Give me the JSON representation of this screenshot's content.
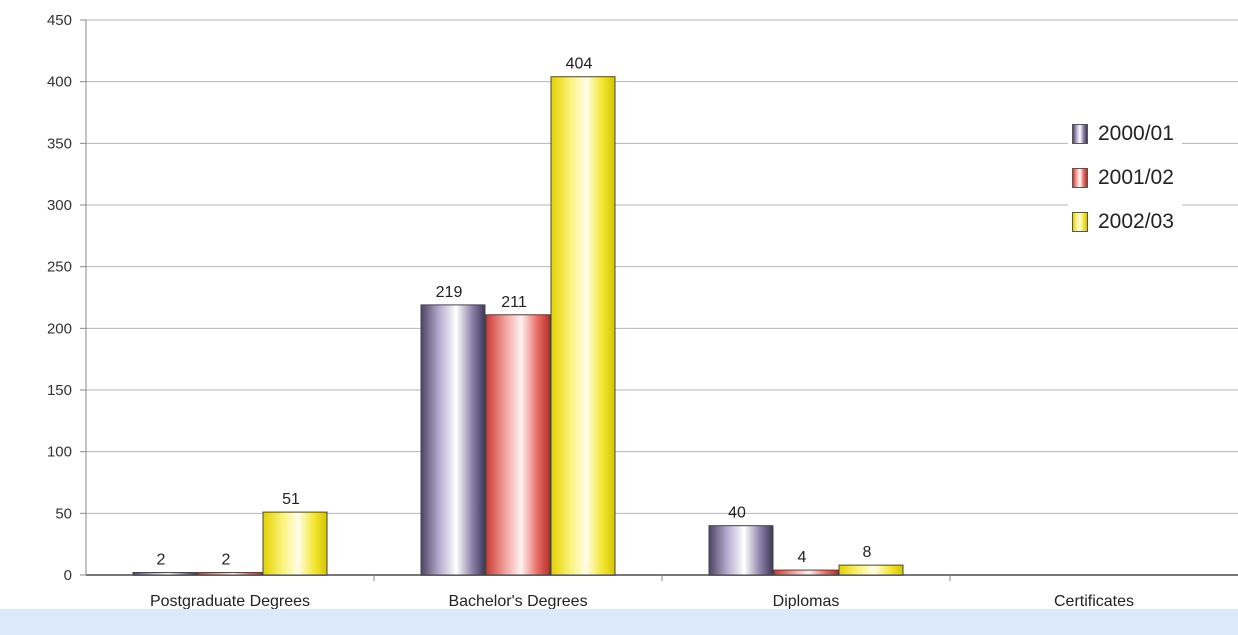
{
  "chart_data": {
    "type": "bar",
    "title": "",
    "xlabel": "",
    "ylabel": "",
    "ylim": [
      0,
      450
    ],
    "y_ticks": [
      0,
      50,
      100,
      150,
      200,
      250,
      300,
      350,
      400,
      450
    ],
    "grid": true,
    "legend_position": "right",
    "categories": [
      "Postgraduate Degrees",
      "Bachelor's Degrees",
      "Diplomas",
      "Certificates"
    ],
    "series": [
      {
        "name": "2000/01",
        "color": "#6f6590",
        "values": [
          2,
          219,
          40,
          null
        ]
      },
      {
        "name": "2001/02",
        "color": "#e0574f",
        "values": [
          2,
          211,
          4,
          null
        ]
      },
      {
        "name": "2002/03",
        "color": "#f2e61e",
        "values": [
          51,
          404,
          8,
          null
        ]
      }
    ],
    "data_labels": [
      [
        "2",
        "219",
        "40",
        ""
      ],
      [
        "2",
        "211",
        "4",
        ""
      ],
      [
        "51",
        "404",
        "8",
        ""
      ]
    ]
  }
}
